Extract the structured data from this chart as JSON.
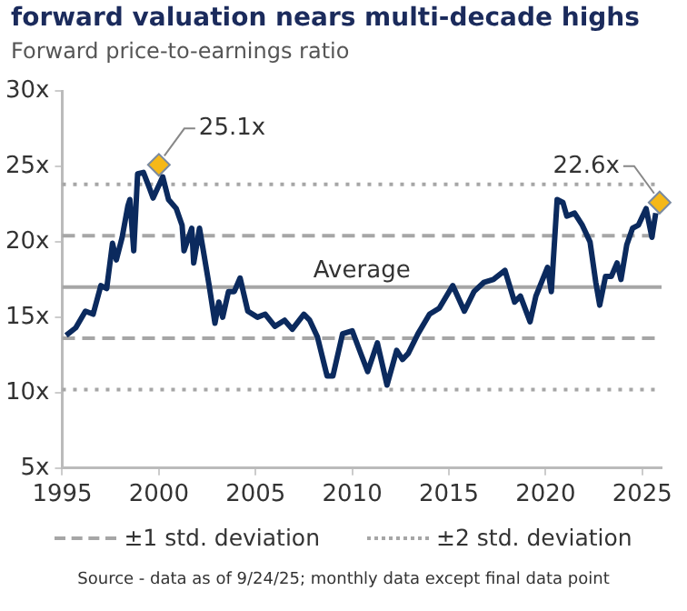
{
  "chart_data": {
    "type": "line",
    "title": "forward valuation nears multi-decade highs",
    "subtitle": "Forward price-to-earnings ratio",
    "xlim": [
      1995,
      2026
    ],
    "xticks": [
      1995,
      2000,
      2005,
      2010,
      2015,
      2020,
      2025
    ],
    "ylim": [
      5,
      30
    ],
    "yticks": [
      {
        "value": 5,
        "label": "5x"
      },
      {
        "value": 10,
        "label": "10x"
      },
      {
        "value": 15,
        "label": "15x"
      },
      {
        "value": 20,
        "label": "20x"
      },
      {
        "value": 25,
        "label": "25x"
      },
      {
        "value": 30,
        "label": "30x"
      }
    ],
    "grid": false,
    "legend": "bottom",
    "series": [
      {
        "color": "#0b2a5e",
        "marker": "none",
        "x": [
          1995.2,
          1995.7,
          1996.2,
          1996.6,
          1997.0,
          1997.3,
          1997.6,
          1997.8,
          1998.1,
          1998.4,
          1998.5,
          1998.7,
          1998.9,
          1999.2,
          1999.5,
          1999.7,
          2000.2,
          2000.5,
          2000.9,
          2001.2,
          2001.3,
          2001.7,
          2001.8,
          2002.1,
          2002.3,
          2002.6,
          2002.9,
          2003.1,
          2003.3,
          2003.6,
          2003.9,
          2004.2,
          2004.6,
          2005.1,
          2005.5,
          2006.0,
          2006.5,
          2006.9,
          2007.5,
          2007.8,
          2008.2,
          2008.7,
          2009.0,
          2009.5,
          2010.0,
          2010.5,
          2010.8,
          2011.3,
          2011.8,
          2012.3,
          2012.6,
          2012.9,
          2013.4,
          2014.0,
          2014.5,
          2015.2,
          2015.8,
          2016.3,
          2016.8,
          2017.3,
          2017.9,
          2018.4,
          2018.7,
          2019.2,
          2019.5,
          2020.1,
          2020.3,
          2020.6,
          2020.9,
          2021.1,
          2021.5,
          2021.9,
          2022.3,
          2022.6,
          2022.8,
          2023.1,
          2023.4,
          2023.7,
          2023.9,
          2024.2,
          2024.5,
          2024.8,
          2025.2,
          2025.5,
          2025.7
        ],
        "values": [
          13.8,
          14.3,
          15.4,
          15.2,
          17.1,
          16.9,
          19.9,
          18.8,
          20.3,
          22.4,
          22.8,
          19.4,
          24.5,
          24.6,
          23.6,
          22.9,
          24.3,
          22.8,
          22.2,
          21.1,
          19.4,
          20.9,
          18.6,
          20.9,
          19.4,
          17.1,
          14.6,
          16.0,
          15.0,
          16.7,
          16.7,
          17.6,
          15.4,
          15.0,
          15.2,
          14.4,
          14.8,
          14.2,
          15.2,
          14.8,
          13.7,
          11.1,
          11.1,
          13.9,
          14.1,
          12.4,
          11.4,
          13.3,
          10.5,
          12.8,
          12.2,
          12.6,
          13.9,
          15.2,
          15.6,
          17.1,
          15.4,
          16.7,
          17.3,
          17.5,
          18.1,
          16.0,
          16.4,
          14.7,
          16.4,
          18.3,
          16.7,
          22.8,
          22.6,
          21.7,
          21.9,
          21.1,
          20.0,
          17.3,
          15.8,
          17.7,
          17.7,
          18.6,
          17.5,
          19.8,
          20.9,
          21.1,
          22.2,
          20.3,
          21.9
        ]
      },
      {
        "type": "scatter",
        "color": "#f5b818",
        "marker": "diamond",
        "x": [
          2000.0,
          2025.9
        ],
        "values": [
          25.1,
          22.6
        ],
        "value_labels": [
          "25.1x",
          "22.6x"
        ]
      }
    ],
    "ref_lines": [
      {
        "axis": "y",
        "value": 17.0,
        "label": "Average",
        "line_style": "solid",
        "color": "#a6a6a6"
      },
      {
        "axis": "y",
        "value": 13.6,
        "label": "±1 std. deviation",
        "line_style": "dashed",
        "color": "#a6a6a6"
      },
      {
        "axis": "y",
        "value": 20.4,
        "line_style": "dashed",
        "color": "#a6a6a6"
      },
      {
        "axis": "y",
        "value": 10.2,
        "label": "±2 std. deviation",
        "line_style": "dotted",
        "color": "#a6a6a6"
      },
      {
        "axis": "y",
        "value": 23.8,
        "line_style": "dotted",
        "color": "#a6a6a6"
      }
    ],
    "annotations": [
      "Source - data as of 9/24/25; monthly data except final data point"
    ]
  }
}
